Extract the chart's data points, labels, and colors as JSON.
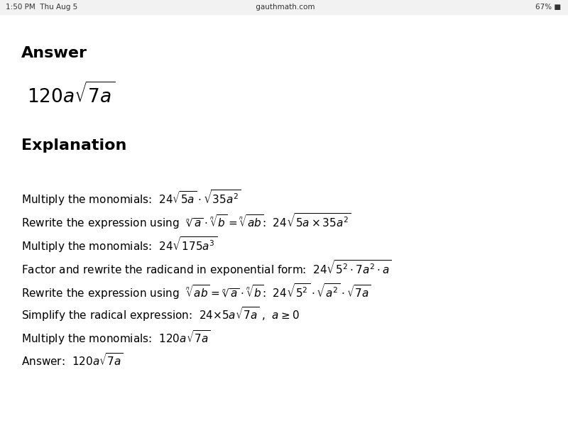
{
  "bg_color": "#ffffff",
  "status_bar_left": "1:50 PM  Thu Aug 5",
  "status_bar_center": "gauthmath.com",
  "status_bar_right": "67%",
  "answer_label": "Answer",
  "explanation_label": "Explanation",
  "figsize": [
    8.0,
    6.0
  ],
  "dpi": 100,
  "lines": [
    "Multiply the monomials:  $24\\sqrt{5a} \\cdot \\sqrt{35a^2}$",
    "Rewrite the expression using  $\\sqrt[n]{a} \\cdot \\sqrt[n]{b}= \\sqrt[n]{ab}$:  $24\\sqrt{5a \\times 35a^2}$",
    "Multiply the monomials:  $24\\sqrt{175a^3}$",
    "Factor and rewrite the radicand in exponential form:  $24\\sqrt{5^2 \\cdot 7a^2 \\cdot a}$",
    "Rewrite the expression using  $\\sqrt[n]{ab}= \\sqrt[n]{a} \\cdot \\sqrt[n]{b}$:  $24\\sqrt{5^2} \\cdot \\sqrt{a^2} \\cdot \\sqrt{7a}$",
    "Simplify the radical expression:  $24{\\times}5a\\sqrt{7a}$ ,  $a \\geq 0$",
    "Multiply the monomials:  $120a\\sqrt{7a}$",
    "Answer:  $120a\\sqrt{7a}$"
  ]
}
